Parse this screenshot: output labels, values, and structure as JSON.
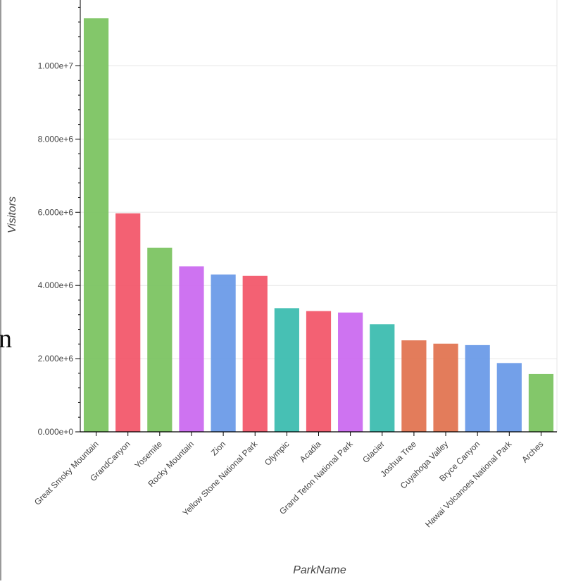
{
  "stray_text": "n",
  "chart_data": {
    "type": "bar",
    "title": "",
    "xlabel": "ParkName",
    "ylabel": "Visitors",
    "ylim": [
      0,
      11800000
    ],
    "yticks": [
      0,
      2000000,
      4000000,
      6000000,
      8000000,
      10000000
    ],
    "ytick_labels": [
      "0.000e+0",
      "2.000e+6",
      "4.000e+6",
      "6.000e+6",
      "8.000e+6",
      "1.000e+7"
    ],
    "grid": true,
    "legend": "none",
    "categories": [
      "Great Smoky Mountain",
      "GrandCanyon",
      "Yosemite",
      "Rocky Mountain",
      "Zion",
      "Yellow Stone National Park",
      "Olympic",
      "Acadia",
      "Grand Teton National Park",
      "Glacier",
      "Joshua Tree",
      "Cuyahoga Valley",
      "Bryce Canyon",
      "Hawai Volcanoes National Park",
      "Arches"
    ],
    "values": [
      11300000,
      5970000,
      5030000,
      4520000,
      4300000,
      4260000,
      3380000,
      3300000,
      3260000,
      2940000,
      2500000,
      2410000,
      2370000,
      1880000,
      1580000
    ],
    "colors": [
      "#7cc462",
      "#f2596c",
      "#7cc462",
      "#cb6cf0",
      "#6b9be8",
      "#f2596c",
      "#3dbdb0",
      "#f2596c",
      "#cb6cf0",
      "#3dbdb0",
      "#e27552",
      "#e27552",
      "#6b9be8",
      "#6b9be8",
      "#7cc462"
    ]
  }
}
